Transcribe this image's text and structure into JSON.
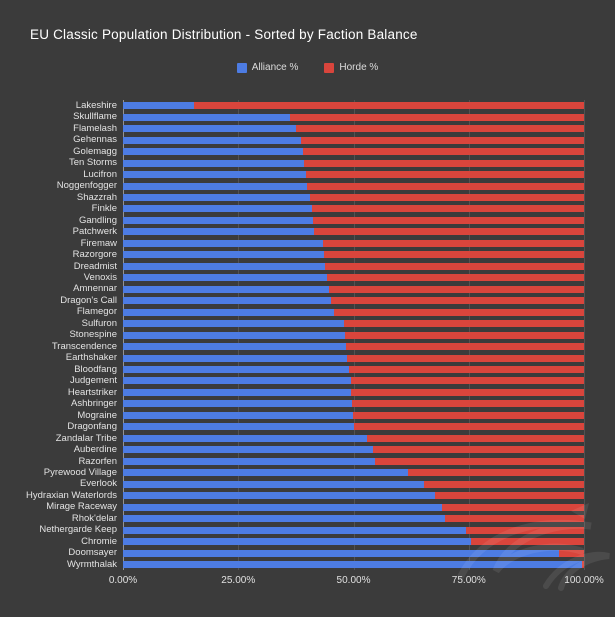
{
  "header": {
    "title": "EU Classic Population Distribution - Sorted by Faction Balance"
  },
  "legend": {
    "items": [
      {
        "label": "Alliance %",
        "color": "#4d7ce3"
      },
      {
        "label": "Horde %",
        "color": "#d9453c"
      }
    ]
  },
  "colors": {
    "background": "#3b3b3b",
    "alliance": "#4d7ce3",
    "horde": "#d9453c"
  },
  "chart_data": {
    "type": "bar",
    "orientation": "horizontal",
    "stacked": true,
    "title": "EU Classic Population Distribution - Sorted by Faction Balance",
    "legend_position": "top",
    "grid": true,
    "xlim": [
      0,
      100
    ],
    "x_ticks": [
      "0.00%",
      "25.00%",
      "50.00%",
      "75.00%",
      "100.00%"
    ],
    "x_tick_values": [
      0,
      25,
      50,
      75,
      100
    ],
    "categories": [
      "Lakeshire",
      "Skullflame",
      "Flamelash",
      "Gehennas",
      "Golemagg",
      "Ten Storms",
      "Lucifron",
      "Noggenfogger",
      "Shazzrah",
      "Finkle",
      "Gandling",
      "Patchwerk",
      "Firemaw",
      "Razorgore",
      "Dreadmist",
      "Venoxis",
      "Amnennar",
      "Dragon's Call",
      "Flamegor",
      "Sulfuron",
      "Stonespine",
      "Transcendence",
      "Earthshaker",
      "Bloodfang",
      "Judgement",
      "Heartstriker",
      "Ashbringer",
      "Mograine",
      "Dragonfang",
      "Zandalar Tribe",
      "Auberdine",
      "Razorfen",
      "Pyrewood Village",
      "Everlook",
      "Hydraxian Waterlords",
      "Mirage Raceway",
      "Rhok'delar",
      "Nethergarde Keep",
      "Chromie",
      "Doomsayer",
      "Wyrmthalak"
    ],
    "series": [
      {
        "name": "Alliance %",
        "color": "#4d7ce3",
        "values": [
          15.4,
          36.3,
          37.6,
          38.7,
          39.0,
          39.3,
          39.6,
          40.0,
          40.5,
          41.0,
          41.3,
          41.4,
          43.4,
          43.7,
          43.9,
          44.2,
          44.7,
          45.2,
          45.7,
          48.0,
          48.2,
          48.3,
          48.5,
          49.0,
          49.4,
          49.5,
          49.7,
          49.9,
          50.2,
          53.0,
          54.2,
          54.6,
          61.8,
          65.2,
          67.7,
          69.3,
          69.9,
          74.4,
          75.5,
          94.6,
          99.6
        ]
      },
      {
        "name": "Horde %",
        "color": "#d9453c",
        "values": [
          84.6,
          63.7,
          62.4,
          61.3,
          61.0,
          60.7,
          60.4,
          60.0,
          59.5,
          59.0,
          58.7,
          58.6,
          56.6,
          56.3,
          56.1,
          55.8,
          55.3,
          54.8,
          54.3,
          52.0,
          51.8,
          51.7,
          51.5,
          51.0,
          50.6,
          50.5,
          50.3,
          50.1,
          49.8,
          47.0,
          45.8,
          45.4,
          38.2,
          34.8,
          32.3,
          30.7,
          30.1,
          25.6,
          24.5,
          5.4,
          0.4
        ]
      }
    ]
  }
}
